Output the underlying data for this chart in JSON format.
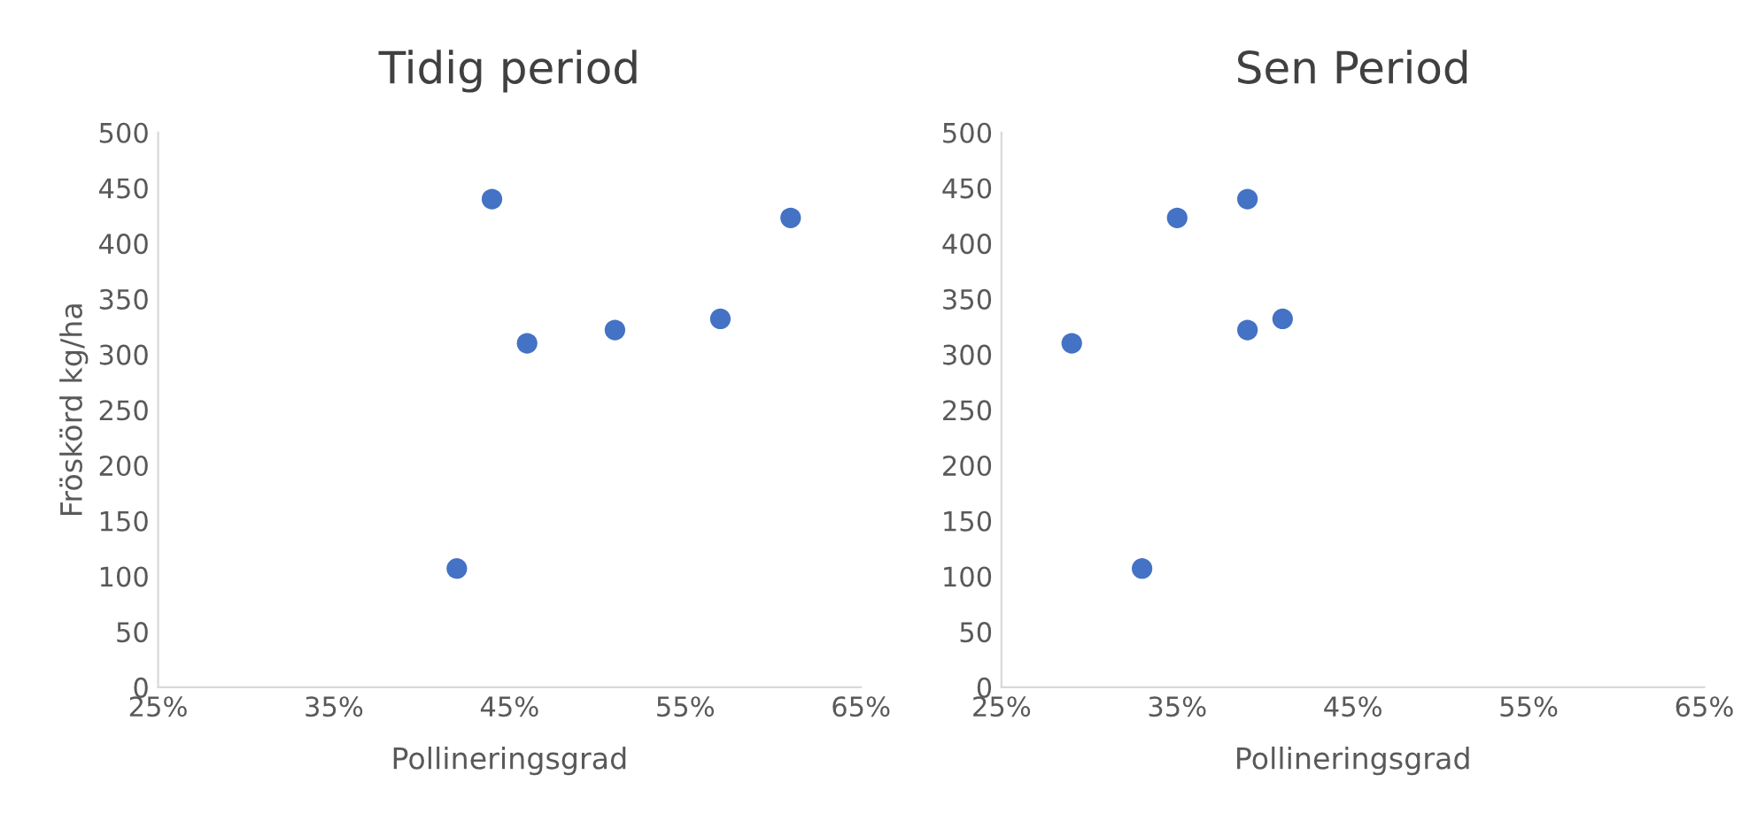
{
  "chart_data": [
    {
      "type": "scatter",
      "title": "Tidig period",
      "xlabel": "Pollineringsgrad",
      "ylabel": "Fröskörd kg/ha",
      "x": [
        42,
        44,
        46,
        51,
        57,
        61
      ],
      "series": [
        {
          "color": "#4472c4",
          "values": [
            107,
            440,
            310,
            322,
            332,
            423
          ]
        }
      ],
      "xlim": [
        25,
        65
      ],
      "xticks": [
        {
          "value": 25,
          "label": "25%"
        },
        {
          "value": 35,
          "label": "35%"
        },
        {
          "value": 45,
          "label": "45%"
        },
        {
          "value": 55,
          "label": "55%"
        },
        {
          "value": 65,
          "label": "65%"
        }
      ],
      "ylim": [
        0,
        500
      ],
      "yticks": [
        0,
        50,
        100,
        150,
        200,
        250,
        300,
        350,
        400,
        450,
        500
      ],
      "marker": "circle",
      "grid": false,
      "legend": false
    },
    {
      "type": "scatter",
      "title": "Sen Period",
      "xlabel": "Pollineringsgrad",
      "x": [
        29,
        33,
        35,
        39,
        39,
        41
      ],
      "series": [
        {
          "color": "#4472c4",
          "values": [
            310,
            107,
            423,
            440,
            322,
            332
          ]
        }
      ],
      "xlim": [
        25,
        65
      ],
      "xticks": [
        {
          "value": 25,
          "label": "25%"
        },
        {
          "value": 35,
          "label": "35%"
        },
        {
          "value": 45,
          "label": "45%"
        },
        {
          "value": 55,
          "label": "55%"
        },
        {
          "value": 65,
          "label": "65%"
        }
      ],
      "ylim": [
        0,
        500
      ],
      "yticks": [
        0,
        50,
        100,
        150,
        200,
        250,
        300,
        350,
        400,
        450,
        500
      ],
      "marker": "circle",
      "grid": false,
      "legend": false
    }
  ]
}
